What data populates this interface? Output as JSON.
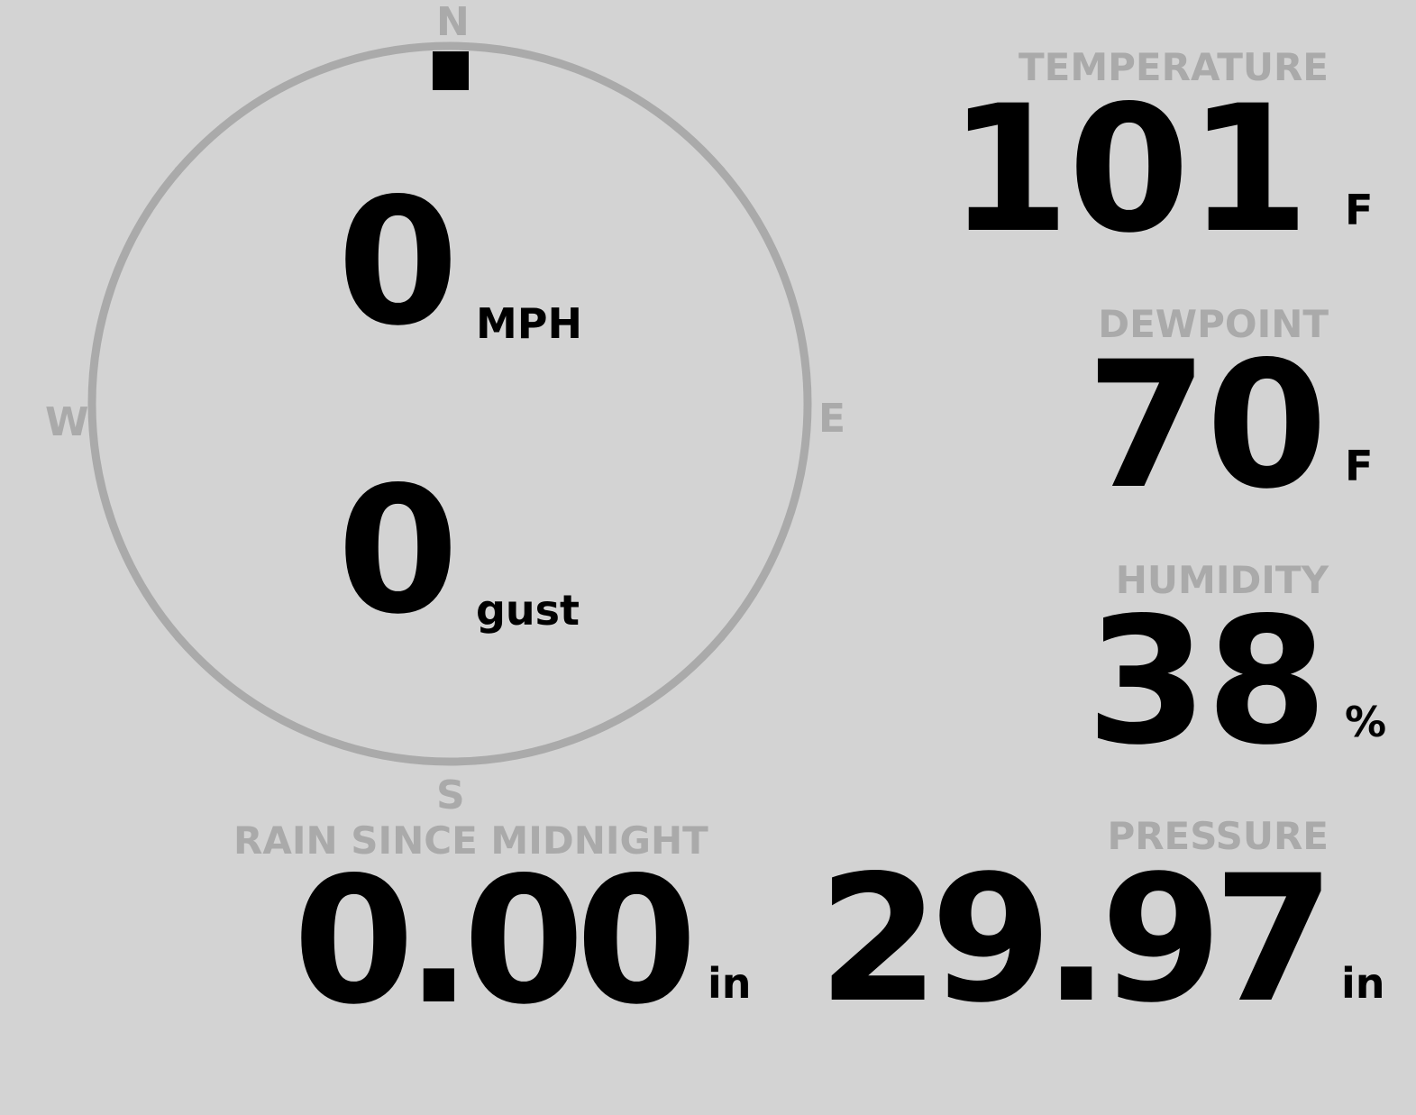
{
  "wind": {
    "speed": "0",
    "speed_unit": "MPH",
    "gust": "0",
    "gust_unit": "gust",
    "direction_deg": 0,
    "compass": {
      "n": "N",
      "e": "E",
      "s": "S",
      "w": "W"
    }
  },
  "temperature": {
    "label": "TEMPERATURE",
    "value": "101",
    "unit": "F"
  },
  "dewpoint": {
    "label": "DEWPOINT",
    "value": "70",
    "unit": "F"
  },
  "humidity": {
    "label": "HUMIDITY",
    "value": "38",
    "unit": "%"
  },
  "rain": {
    "label": "RAIN SINCE MIDNIGHT",
    "value": "0.00",
    "unit": "in"
  },
  "pressure": {
    "label": "PRESSURE",
    "value": "29.97",
    "unit": "in"
  },
  "colors": {
    "background": "#d3d3d3",
    "label": "#aaaaaa",
    "value": "#000000",
    "ring": "#aaaaaa"
  }
}
